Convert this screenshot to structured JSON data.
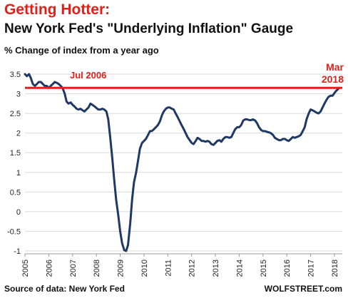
{
  "header": {
    "title": "Getting Hotter:",
    "subtitle": "New York Fed's \"Underlying Inflation\" Gauge",
    "ylabel": "% Change of index from a year ago"
  },
  "footer": {
    "source": "Source of data: New York Fed",
    "brand": "WOLFSTREET.com"
  },
  "colors": {
    "title": "#e0201b",
    "series": "#1f3864",
    "reference_line": "#e0201b",
    "grid": "#d9d9d9"
  },
  "chart_data": {
    "type": "line",
    "title": "New York Fed's \"Underlying Inflation\" Gauge",
    "ylabel": "% Change of index from a year ago",
    "xlabel": "",
    "xlim": [
      2005.0,
      2018.33
    ],
    "ylim": [
      -1,
      3.5
    ],
    "y_ticks": [
      "3.5",
      "3",
      "2.5",
      "2",
      "1.5",
      "1",
      "0.5",
      "0",
      "-0.5",
      "-1"
    ],
    "x_ticks": [
      "2005",
      "2006",
      "2007",
      "2008",
      "2009",
      "2010",
      "2011",
      "2012",
      "2013",
      "2014",
      "2015",
      "2016",
      "2017",
      "2018"
    ],
    "grid": "horizontal",
    "reference_line": {
      "y": 3.15
    },
    "annotations": [
      {
        "text": "Jul 2006"
      },
      {
        "text": "Mar"
      },
      {
        "text": "2018"
      }
    ],
    "series": [
      {
        "x": [
          2005.0,
          2005.08,
          2005.17,
          2005.25,
          2005.33,
          2005.42,
          2005.5,
          2005.58,
          2005.67,
          2005.75,
          2005.83,
          2005.92,
          2006.0,
          2006.08,
          2006.17,
          2006.25,
          2006.33,
          2006.42,
          2006.5,
          2006.58,
          2006.67,
          2006.75,
          2006.83,
          2006.92,
          2007.0,
          2007.08,
          2007.17,
          2007.25,
          2007.33,
          2007.42,
          2007.5,
          2007.58,
          2007.67,
          2007.75,
          2007.83,
          2007.92,
          2008.0,
          2008.08,
          2008.17,
          2008.25,
          2008.33,
          2008.42,
          2008.5,
          2008.58,
          2008.67,
          2008.75,
          2008.83,
          2008.92,
          2009.0,
          2009.08,
          2009.17,
          2009.25,
          2009.33,
          2009.42,
          2009.5,
          2009.58,
          2009.67,
          2009.75,
          2009.83,
          2009.92,
          2010.0,
          2010.08,
          2010.17,
          2010.25,
          2010.33,
          2010.42,
          2010.5,
          2010.58,
          2010.67,
          2010.75,
          2010.83,
          2010.92,
          2011.0,
          2011.08,
          2011.17,
          2011.25,
          2011.33,
          2011.42,
          2011.5,
          2011.58,
          2011.67,
          2011.75,
          2011.83,
          2011.92,
          2012.0,
          2012.08,
          2012.17,
          2012.25,
          2012.33,
          2012.42,
          2012.5,
          2012.58,
          2012.67,
          2012.75,
          2012.83,
          2012.92,
          2013.0,
          2013.08,
          2013.17,
          2013.25,
          2013.33,
          2013.42,
          2013.5,
          2013.58,
          2013.67,
          2013.75,
          2013.83,
          2013.92,
          2014.0,
          2014.08,
          2014.17,
          2014.25,
          2014.33,
          2014.42,
          2014.5,
          2014.58,
          2014.67,
          2014.75,
          2014.83,
          2014.92,
          2015.0,
          2015.08,
          2015.17,
          2015.25,
          2015.33,
          2015.42,
          2015.5,
          2015.58,
          2015.67,
          2015.75,
          2015.83,
          2015.92,
          2016.0,
          2016.08,
          2016.17,
          2016.25,
          2016.33,
          2016.42,
          2016.5,
          2016.58,
          2016.67,
          2016.75,
          2016.83,
          2016.92,
          2017.0,
          2017.08,
          2017.17,
          2017.25,
          2017.33,
          2017.42,
          2017.5,
          2017.58,
          2017.67,
          2017.75,
          2017.83,
          2017.92,
          2018.0,
          2018.08,
          2018.17
        ],
        "y": [
          3.5,
          3.45,
          3.5,
          3.4,
          3.25,
          3.2,
          3.25,
          3.3,
          3.3,
          3.25,
          3.2,
          3.2,
          3.15,
          3.2,
          3.25,
          3.3,
          3.28,
          3.25,
          3.2,
          3.15,
          3.0,
          2.8,
          2.75,
          2.78,
          2.72,
          2.68,
          2.62,
          2.6,
          2.62,
          2.58,
          2.55,
          2.6,
          2.65,
          2.75,
          2.72,
          2.68,
          2.64,
          2.6,
          2.6,
          2.62,
          2.6,
          2.55,
          2.35,
          1.9,
          1.35,
          0.8,
          0.3,
          -0.1,
          -0.5,
          -0.8,
          -0.98,
          -1.0,
          -0.85,
          -0.3,
          0.3,
          0.75,
          1.0,
          1.3,
          1.6,
          1.75,
          1.8,
          1.85,
          1.95,
          2.05,
          2.05,
          2.1,
          2.15,
          2.2,
          2.3,
          2.45,
          2.55,
          2.62,
          2.65,
          2.65,
          2.62,
          2.6,
          2.5,
          2.4,
          2.3,
          2.2,
          2.1,
          2.0,
          1.9,
          1.82,
          1.75,
          1.72,
          1.8,
          1.88,
          1.85,
          1.8,
          1.8,
          1.78,
          1.8,
          1.78,
          1.72,
          1.7,
          1.75,
          1.8,
          1.82,
          1.78,
          1.85,
          1.9,
          1.9,
          1.88,
          1.9,
          2.0,
          2.1,
          2.15,
          2.15,
          2.2,
          2.32,
          2.35,
          2.35,
          2.33,
          2.33,
          2.35,
          2.32,
          2.25,
          2.15,
          2.08,
          2.05,
          2.05,
          2.03,
          2.02,
          2.0,
          1.95,
          1.88,
          1.85,
          1.82,
          1.82,
          1.85,
          1.85,
          1.82,
          1.8,
          1.85,
          1.9,
          1.88,
          1.9,
          1.92,
          1.95,
          2.05,
          2.15,
          2.35,
          2.5,
          2.6,
          2.58,
          2.55,
          2.52,
          2.5,
          2.55,
          2.65,
          2.75,
          2.85,
          2.92,
          2.95,
          2.95,
          3.02,
          3.08,
          3.13
        ]
      }
    ]
  }
}
